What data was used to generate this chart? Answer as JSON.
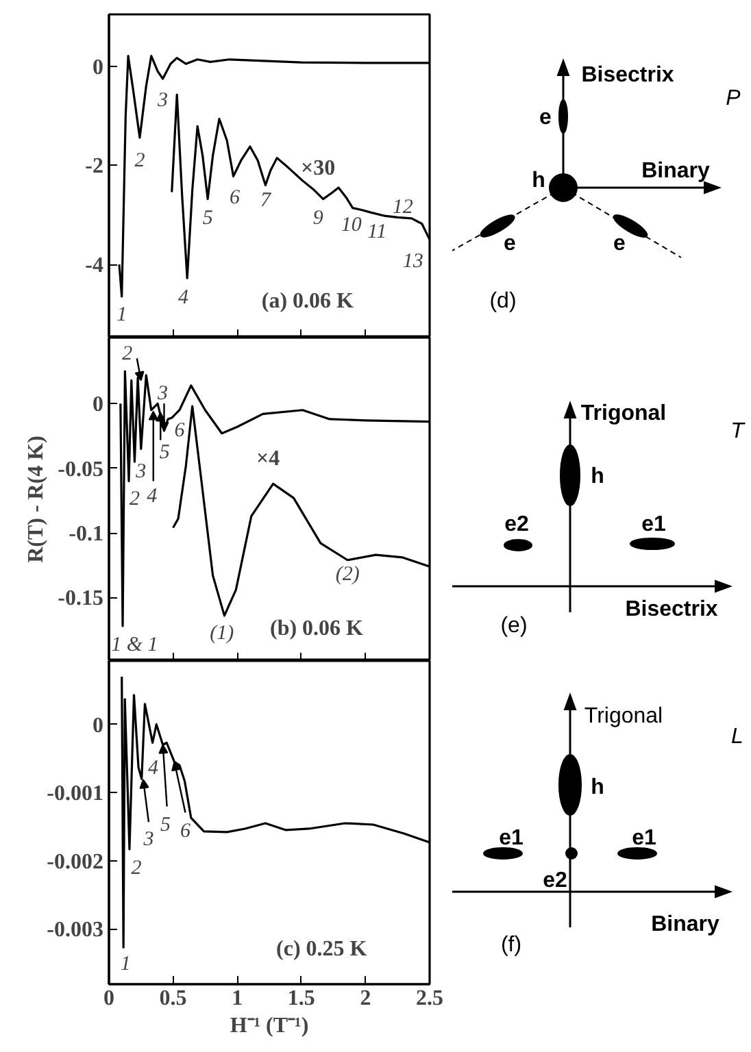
{
  "chart_data": [
    {
      "type": "line",
      "xlim": [
        0,
        2.5
      ],
      "xticks": [
        0,
        0.5,
        1,
        1.5,
        2,
        2.5
      ],
      "ylim": [
        -5.48,
        1.05
      ],
      "yticks": [
        -4,
        -2,
        0
      ],
      "tick_labels": "y",
      "series": [
        {
          "color": "#000000",
          "x": [
            0.08,
            0.1,
            0.13,
            0.15,
            0.19,
            0.24,
            0.29,
            0.33,
            0.38,
            0.42,
            0.48,
            0.53,
            0.6,
            0.69,
            0.79,
            0.94,
            1.5,
            2.0,
            2.5
          ],
          "values": [
            -4.0,
            -4.65,
            -1.0,
            0.21,
            -0.5,
            -1.44,
            -0.4,
            0.21,
            -0.1,
            -0.25,
            0.05,
            0.17,
            0.05,
            0.14,
            0.09,
            0.14,
            0.08,
            0.07,
            0.07
          ]
        },
        {
          "color": "#000000",
          "x": [
            0.49,
            0.53,
            0.57,
            0.61,
            0.65,
            0.69,
            0.73,
            0.77,
            0.81,
            0.86,
            0.92,
            0.97,
            1.03,
            1.1,
            1.16,
            1.22,
            1.26,
            1.31,
            1.4,
            1.51,
            1.6,
            1.67,
            1.74,
            1.79,
            1.85,
            1.9,
            1.97,
            2.04,
            2.15,
            2.25,
            2.36,
            2.44,
            2.5
          ],
          "values": [
            -2.54,
            -0.57,
            -2.6,
            -4.28,
            -2.5,
            -1.21,
            -1.8,
            -2.68,
            -1.8,
            -1.06,
            -1.5,
            -2.22,
            -1.9,
            -1.62,
            -1.9,
            -2.4,
            -2.1,
            -1.85,
            -2.05,
            -2.31,
            -2.5,
            -2.68,
            -2.55,
            -2.45,
            -2.65,
            -2.86,
            -2.9,
            -2.95,
            -3.02,
            -3.05,
            -3.07,
            -3.18,
            -3.5
          ]
        }
      ],
      "annotations": [
        "(a)  0.06 K",
        "×30",
        "1",
        "2",
        "3",
        "4",
        "5",
        "6",
        "7",
        "9",
        "10",
        "11",
        "12",
        "13"
      ]
    },
    {
      "type": "line",
      "ylabel": "R(T) - R(4 K)",
      "xlim": [
        0,
        2.5
      ],
      "xticks": [
        0,
        0.5,
        1,
        1.5,
        2,
        2.5
      ],
      "ylim": [
        -0.199,
        0.051
      ],
      "yticks": [
        -0.15,
        -0.1,
        -0.05,
        0
      ],
      "tick_labels": "y",
      "series": [
        {
          "color": "#000000",
          "x": [
            0.09,
            0.107,
            0.125,
            0.155,
            0.175,
            0.2,
            0.225,
            0.25,
            0.29,
            0.33,
            0.38,
            0.43,
            0.46,
            0.49,
            0.55,
            0.64,
            0.75,
            0.88,
            1.0,
            1.2,
            1.51,
            1.72,
            2.0,
            2.5
          ],
          "values": [
            0.0,
            -0.172,
            0.025,
            -0.06,
            0.018,
            -0.045,
            0.02,
            -0.035,
            0.022,
            -0.005,
            0.0,
            -0.021,
            -0.012,
            -0.011,
            -0.005,
            0.014,
            -0.005,
            -0.023,
            -0.018,
            -0.008,
            -0.005,
            -0.012,
            -0.013,
            -0.014
          ]
        },
        {
          "color": "#000000",
          "x": [
            0.5,
            0.54,
            0.6,
            0.65,
            0.72,
            0.81,
            0.9,
            0.99,
            1.11,
            1.28,
            1.44,
            1.65,
            1.86,
            2.08,
            2.29,
            2.5
          ],
          "values": [
            -0.096,
            -0.089,
            -0.048,
            -0.002,
            -0.059,
            -0.133,
            -0.164,
            -0.144,
            -0.087,
            -0.062,
            -0.073,
            -0.108,
            -0.121,
            -0.117,
            -0.119,
            -0.126
          ]
        }
      ],
      "annotations": [
        "(b)  0.06 K",
        "×4",
        {
          "text": "2",
          "x": 0.25,
          "y": 0.018
        },
        {
          "text": "3",
          "x": 0.43,
          "y": -0.021
        },
        "2",
        "3",
        {
          "text": "4",
          "x": 0.346,
          "y": -0.006
        },
        {
          "text": "5",
          "x": 0.402,
          "y": -0.007
        },
        "6",
        "(1)",
        "(2)",
        "1 & 1"
      ]
    },
    {
      "type": "line",
      "xlabel": "H⁻¹ (T⁻¹)",
      "xlim": [
        0,
        2.5
      ],
      "xticks": [
        0,
        0.5,
        1,
        1.5,
        2,
        2.5
      ],
      "ylim": [
        -0.00381,
        0.00093
      ],
      "yticks": [
        -0.003,
        -0.002,
        -0.001,
        0
      ],
      "series": [
        {
          "color": "#000000",
          "x": [
            0.1,
            0.113,
            0.124,
            0.16,
            0.195,
            0.23,
            0.255,
            0.28,
            0.34,
            0.37,
            0.42,
            0.45,
            0.51,
            0.55,
            0.59,
            0.64,
            0.74,
            0.92,
            1.06,
            1.22,
            1.38,
            1.56,
            1.84,
            2.06,
            2.3,
            2.5
          ],
          "values": [
            0.0007,
            -0.00327,
            0.00037,
            -0.00183,
            0.00043,
            -0.00063,
            -0.0008,
            0.0003,
            -0.00027,
            0.0,
            -0.0003,
            -0.00027,
            -0.00055,
            -0.0006,
            -0.00083,
            -0.00137,
            -0.00157,
            -0.00158,
            -0.00153,
            -0.00145,
            -0.00155,
            -0.00153,
            -0.00145,
            -0.00147,
            -0.0016,
            -0.00173
          ]
        }
      ],
      "annotations": [
        "(c)   0.25 K",
        "1",
        "2",
        {
          "text": "3",
          "x": 0.267,
          "y": -0.00081
        },
        "4",
        {
          "text": "5",
          "x": 0.42,
          "y": -0.0003
        },
        {
          "text": "6",
          "x": 0.51,
          "y": -0.00055
        }
      ]
    },
    {
      "type": "other",
      "annotations": [
        "P",
        "Bisectrix",
        "e",
        "h",
        "Binary",
        "e",
        "e",
        "(d)",
        "T",
        "Trigonal",
        "h",
        "e2",
        "e1",
        "Bisectrix",
        "(e)",
        "L",
        "Trigonal",
        "h",
        "e1",
        "e1",
        "e2",
        "Binary",
        "(f)"
      ]
    }
  ]
}
